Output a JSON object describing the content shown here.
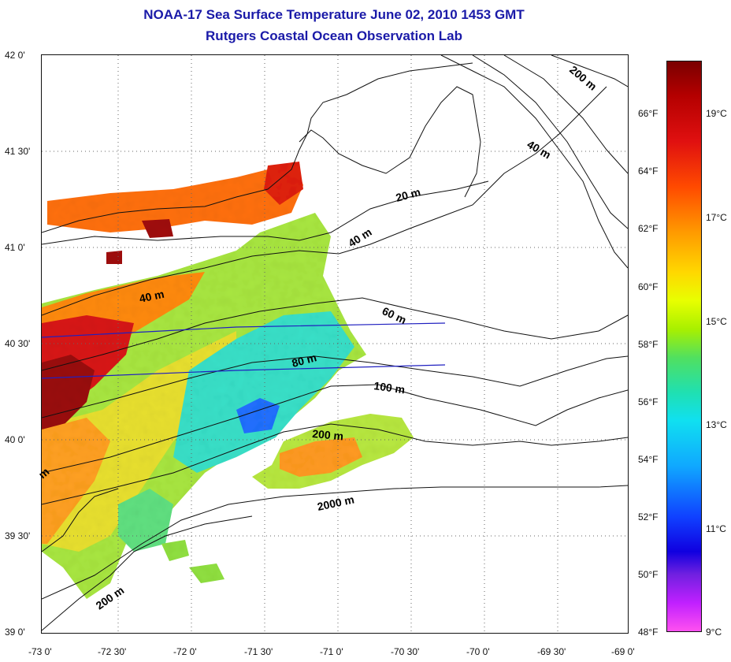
{
  "title": {
    "line1": "NOAA-17 Sea Surface Temperature June 02, 2010 1453 GMT",
    "line2": "Rutgers Coastal Ocean Observation Lab"
  },
  "map": {
    "lat_labels": [
      "42 0'",
      "41 30'",
      "41 0'",
      "40 30'",
      "40 0'",
      "39 30'",
      "39 0'"
    ],
    "lon_labels": [
      "-73 0'",
      "-72 30'",
      "-72 0'",
      "-71 30'",
      "-71 0'",
      "-70 30'",
      "-70 0'",
      "-69 30'",
      "-69 0'"
    ],
    "contour_labels": {
      "c_200_ne": "200 m",
      "c_40_ne": "40 m",
      "c_20": "20 m",
      "c_40_mid": "40 m",
      "c_40_west": "40 m",
      "c_60": "60 m",
      "c_80": "80 m",
      "c_100": "100 m",
      "c_200_mid": "200 m",
      "c_2000": "2000 m",
      "c_200_sw": "200 m",
      "c_m_edge": "m"
    }
  },
  "colorbar": {
    "fahrenheit_labels": [
      "66°F",
      "64°F",
      "62°F",
      "60°F",
      "58°F",
      "56°F",
      "54°F",
      "52°F",
      "50°F",
      "48°F"
    ],
    "celsius_labels": [
      "19°C",
      "17°C",
      "15°C",
      "13°C",
      "11°C",
      "9°C"
    ],
    "range_f": [
      48,
      67.8
    ],
    "range_c": [
      9,
      19.9
    ]
  },
  "colors": {
    "title": "#1a1aa8",
    "land_lines": "#111111",
    "track_lines": "#2020c0"
  }
}
